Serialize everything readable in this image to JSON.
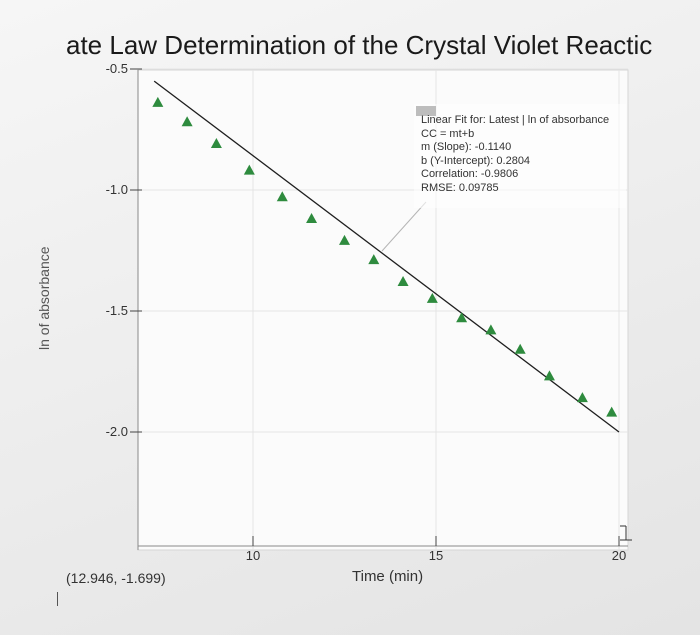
{
  "title": "ate Law Determination of the Crystal Violet Reactic",
  "coordinate_readout": "(12.946, -1.699)",
  "chart_data": {
    "type": "scatter",
    "title": "ate Law Determination of the Crystal Violet Reactic",
    "xlabel": "Time (min)",
    "ylabel": "ln of absorbance",
    "xlim": [
      6,
      21
    ],
    "ylim": [
      -2.45,
      -0.5
    ],
    "x_ticks": [
      "10",
      "15",
      "20"
    ],
    "y_ticks": [
      "-0.5",
      "-1.0",
      "-1.5",
      "-2.0"
    ],
    "grid": true,
    "marker_color": "#2e8b3e",
    "fit_line_color": "#1e1e1e",
    "series": [
      {
        "x": [
          7.4,
          8.2,
          9.0,
          9.9,
          10.8,
          11.6,
          12.5,
          13.3,
          14.1,
          14.9,
          15.7,
          16.5,
          17.3,
          18.1,
          19.0,
          19.8
        ],
        "y": [
          -0.64,
          -0.72,
          -0.81,
          -0.92,
          -1.03,
          -1.12,
          -1.21,
          -1.29,
          -1.38,
          -1.45,
          -1.53,
          -1.58,
          -1.66,
          -1.77,
          -1.86,
          -1.92
        ]
      }
    ],
    "fit_line": {
      "x": [
        7.3,
        20.0
      ],
      "y": [
        -0.55,
        -2.0
      ]
    },
    "legend": {
      "position": "top-right",
      "lines": [
        "Linear Fit for: Latest | ln of absorbance",
        "CC = mt+b",
        "m (Slope): -0.1140",
        "b (Y-Intercept): 0.2804",
        "Correlation: -0.9806",
        "RMSE: 0.09785"
      ]
    }
  }
}
